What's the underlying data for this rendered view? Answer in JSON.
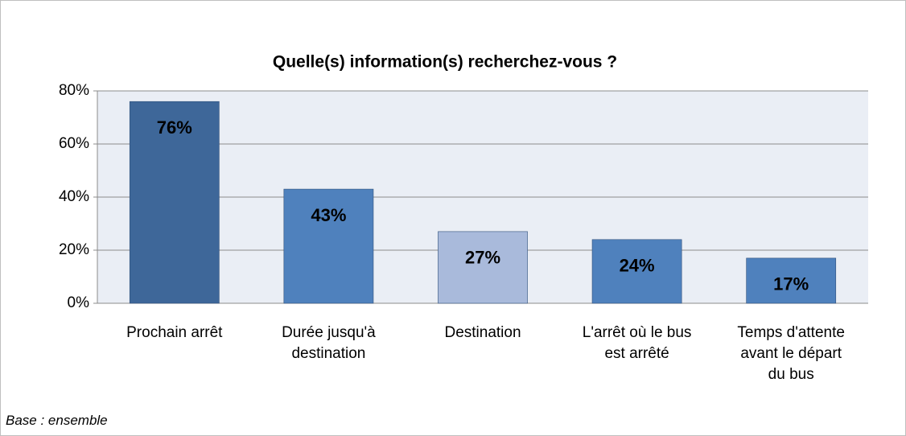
{
  "chart_data": {
    "type": "bar",
    "title": "Quelle(s) information(s) recherchez-vous ?",
    "categories": [
      "Prochain arrêt",
      "Durée jusqu'à destination",
      "Destination",
      "L'arrêt où le bus est arrêté",
      "Temps d'attente avant le départ du bus"
    ],
    "values": [
      76,
      43,
      27,
      24,
      17
    ],
    "value_labels": [
      "76%",
      "43%",
      "27%",
      "24%",
      "17%"
    ],
    "colors": [
      "#3e6799",
      "#4f81bd",
      "#a9badb",
      "#4f81bd",
      "#4f81bd"
    ],
    "ylim": [
      0,
      80
    ],
    "yticks": [
      {
        "value": 0,
        "label": "0%"
      },
      {
        "value": 20,
        "label": "20%"
      },
      {
        "value": 40,
        "label": "40%"
      },
      {
        "value": 60,
        "label": "60%"
      },
      {
        "value": 80,
        "label": "80%"
      }
    ],
    "grid": true,
    "note": "Base : ensemble"
  }
}
